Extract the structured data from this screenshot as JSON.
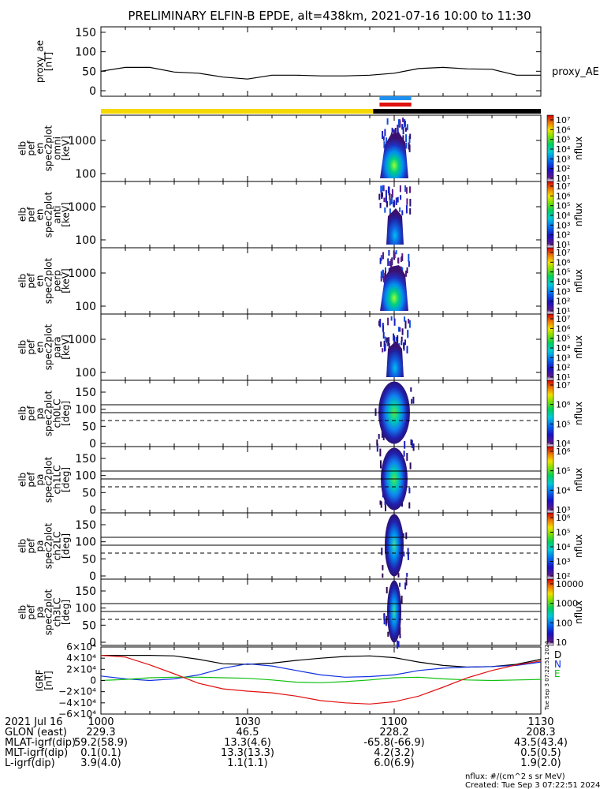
{
  "title": "PRELIMINARY ELFIN-B EPDE, alt=438km, 2021-07-16 10:00 to 11:30",
  "chart_data": [
    {
      "type": "line",
      "id": "proxy_ae",
      "ylabel": [
        "proxy_ae",
        "[nT]"
      ],
      "yticks": [
        "150",
        "100",
        "50",
        "0"
      ],
      "ylim": [
        0,
        160
      ],
      "series_label": "proxy_AE",
      "x_min": [
        0,
        5,
        10,
        15,
        20,
        25,
        30,
        35,
        40,
        45,
        50,
        55,
        60,
        65,
        70,
        75,
        80,
        85,
        90
      ],
      "values": [
        50,
        60,
        60,
        48,
        45,
        35,
        30,
        40,
        40,
        38,
        38,
        40,
        45,
        57,
        60,
        56,
        55,
        40,
        40
      ]
    },
    {
      "type": "bar",
      "id": "status_bar",
      "segments": [
        {
          "from_min": 0,
          "to_min": 55.7,
          "color": "#f5d800"
        },
        {
          "from_min": 55.7,
          "to_min": 90,
          "color": "#000000"
        }
      ],
      "markers": [
        {
          "from_min": 57.0,
          "to_min": 63.5,
          "color": "#2090f0",
          "row": 0
        },
        {
          "from_min": 57.0,
          "to_min": 63.5,
          "color": "#e01010",
          "row": 1
        }
      ]
    },
    {
      "type": "heatmap",
      "id": "omni",
      "ylabel": [
        "elb",
        "pef",
        "en",
        "spec2plot",
        "omni",
        "[keV]"
      ],
      "yticks": [
        "1000",
        "100"
      ],
      "ylog": true,
      "colorbar": {
        "label": "nflux",
        "ticks": [
          "10⁷",
          "10⁶",
          "10⁵",
          "10⁴",
          "10³",
          "10²",
          "10¹"
        ]
      }
    },
    {
      "type": "heatmap",
      "id": "anti",
      "ylabel": [
        "elb",
        "pef",
        "en",
        "spec2plot",
        "anti",
        "[keV]"
      ],
      "yticks": [
        "1000",
        "100"
      ],
      "ylog": true,
      "colorbar": {
        "label": "nflux",
        "ticks": [
          "10⁷",
          "10⁶",
          "10⁵",
          "10⁴",
          "10³",
          "10²",
          "10¹"
        ]
      }
    },
    {
      "type": "heatmap",
      "id": "perp",
      "ylabel": [
        "elb",
        "pef",
        "en",
        "spec2plot",
        "perp",
        "[keV]"
      ],
      "yticks": [
        "1000",
        "100"
      ],
      "ylog": true,
      "colorbar": {
        "label": "nflux",
        "ticks": [
          "10⁷",
          "10⁶",
          "10⁵",
          "10⁴",
          "10³",
          "10²",
          "10¹"
        ]
      }
    },
    {
      "type": "heatmap",
      "id": "para",
      "ylabel": [
        "elb",
        "pef",
        "en",
        "spec2plot",
        "para",
        "[keV]"
      ],
      "yticks": [
        "1000",
        "100"
      ],
      "ylog": true,
      "colorbar": {
        "label": "nflux",
        "ticks": [
          "10⁷",
          "10⁶",
          "10⁵",
          "10⁴",
          "10³",
          "10²",
          "10¹"
        ]
      }
    },
    {
      "type": "heatmap",
      "id": "ch0LC",
      "ylabel": [
        "elb",
        "pef",
        "pa",
        "spec2plot",
        "ch0LC",
        "[deg]"
      ],
      "yticks": [
        "150",
        "100",
        "50",
        "0"
      ],
      "ylim": [
        0,
        180
      ],
      "colorbar": {
        "label": "nflux",
        "ticks": [
          "10⁷",
          "10⁶",
          "10⁵",
          "10⁴"
        ]
      }
    },
    {
      "type": "heatmap",
      "id": "ch1LC",
      "ylabel": [
        "elb",
        "pef",
        "pa",
        "spec2plot",
        "ch1LC",
        "[deg]"
      ],
      "yticks": [
        "150",
        "100",
        "50",
        "0"
      ],
      "ylim": [
        0,
        180
      ],
      "colorbar": {
        "label": "nflux",
        "ticks": [
          "10⁶",
          "10⁵",
          "10⁴",
          "10³"
        ]
      }
    },
    {
      "type": "heatmap",
      "id": "ch2LC",
      "ylabel": [
        "elb",
        "pef",
        "pa",
        "spec2plot",
        "ch2LC",
        "[deg]"
      ],
      "yticks": [
        "150",
        "100",
        "50",
        "0"
      ],
      "ylim": [
        0,
        180
      ],
      "colorbar": {
        "label": "nflux",
        "ticks": [
          "10⁶",
          "10⁵",
          "10⁴",
          "10³",
          "10²"
        ]
      }
    },
    {
      "type": "heatmap",
      "id": "ch3LC",
      "ylabel": [
        "elb",
        "pef",
        "pa",
        "spec2plot",
        "ch3LC",
        "[deg]"
      ],
      "yticks": [
        "150",
        "100",
        "50",
        "0"
      ],
      "ylim": [
        0,
        180
      ],
      "colorbar": {
        "label": "nflux",
        "ticks": [
          "10000",
          "1000",
          "100",
          "10"
        ]
      }
    },
    {
      "type": "line",
      "id": "igrf",
      "ylabel": [
        "IGRF",
        "[nT]"
      ],
      "yticks": [
        "6×10⁴",
        "4×10⁴",
        "2×10⁴",
        "0",
        "−2×10⁴",
        "−4×10⁴",
        "−6×10⁴"
      ],
      "ylim": [
        -60000,
        60000
      ],
      "x_min": [
        0,
        5,
        10,
        15,
        20,
        25,
        30,
        35,
        40,
        45,
        50,
        55,
        60,
        65,
        70,
        75,
        80,
        85,
        90
      ],
      "series": [
        {
          "name": "D",
          "color": "#000000",
          "values": [
            45000,
            45000,
            45000,
            44000,
            38000,
            30000,
            29000,
            31000,
            36000,
            40000,
            43000,
            44000,
            41000,
            33000,
            27000,
            24000,
            25000,
            29000,
            38000
          ]
        },
        {
          "name": "N",
          "color": "#1030e0",
          "values": [
            8000,
            3000,
            0,
            3000,
            10000,
            22000,
            30000,
            26000,
            18000,
            10000,
            6000,
            7000,
            10000,
            18000,
            22000,
            24000,
            25000,
            27000,
            33000
          ]
        },
        {
          "name": "E",
          "color": "#10c010",
          "values": [
            0,
            2000,
            5000,
            6000,
            6000,
            5000,
            4000,
            1000,
            -3000,
            -4000,
            -2000,
            1000,
            5000,
            6000,
            3000,
            1000,
            0,
            1000,
            2000
          ]
        },
        {
          "name": "red",
          "color": "#e01010",
          "values": [
            45000,
            42000,
            28000,
            12000,
            -5000,
            -15000,
            -19000,
            -22000,
            -28000,
            -36000,
            -40000,
            -42000,
            -38000,
            -28000,
            -12000,
            5000,
            18000,
            28000,
            35000
          ]
        }
      ]
    }
  ],
  "side_timestamp": "Tue Sep  3 07:22:51 2024",
  "xaxis": {
    "ticks": [
      {
        "min": 0,
        "label": "1000"
      },
      {
        "min": 30,
        "label": "1030"
      },
      {
        "min": 60,
        "label": "1100"
      },
      {
        "min": 90,
        "label": "1130"
      }
    ],
    "rows": [
      {
        "label": "2021 Jul 16",
        "values": [
          "",
          "",
          "",
          ""
        ]
      },
      {
        "label": "GLON (east)",
        "values": [
          "229.3",
          "46.5",
          "228.2",
          "208.3"
        ]
      },
      {
        "label": "MLAT-igrf(dip)",
        "values": [
          "59.2(58.9)",
          "13.3(4.6)",
          "-65.8(-66.9)",
          "43.5(43.4)"
        ]
      },
      {
        "label": "MLT-igrf(dip)",
        "values": [
          "0.1(0.1)",
          "13.3(13.3)",
          "4.2(3.2)",
          "0.5(0.5)"
        ]
      },
      {
        "label": "L-igrf(dip)",
        "values": [
          "3.9(4.0)",
          "1.1(1.1)",
          "6.0(6.9)",
          "1.9(2.0)"
        ]
      }
    ]
  },
  "footer": {
    "units": "nflux: #/(cm^2 s sr MeV)",
    "created": "Created: Tue Sep  3 07:22:51 2024"
  }
}
